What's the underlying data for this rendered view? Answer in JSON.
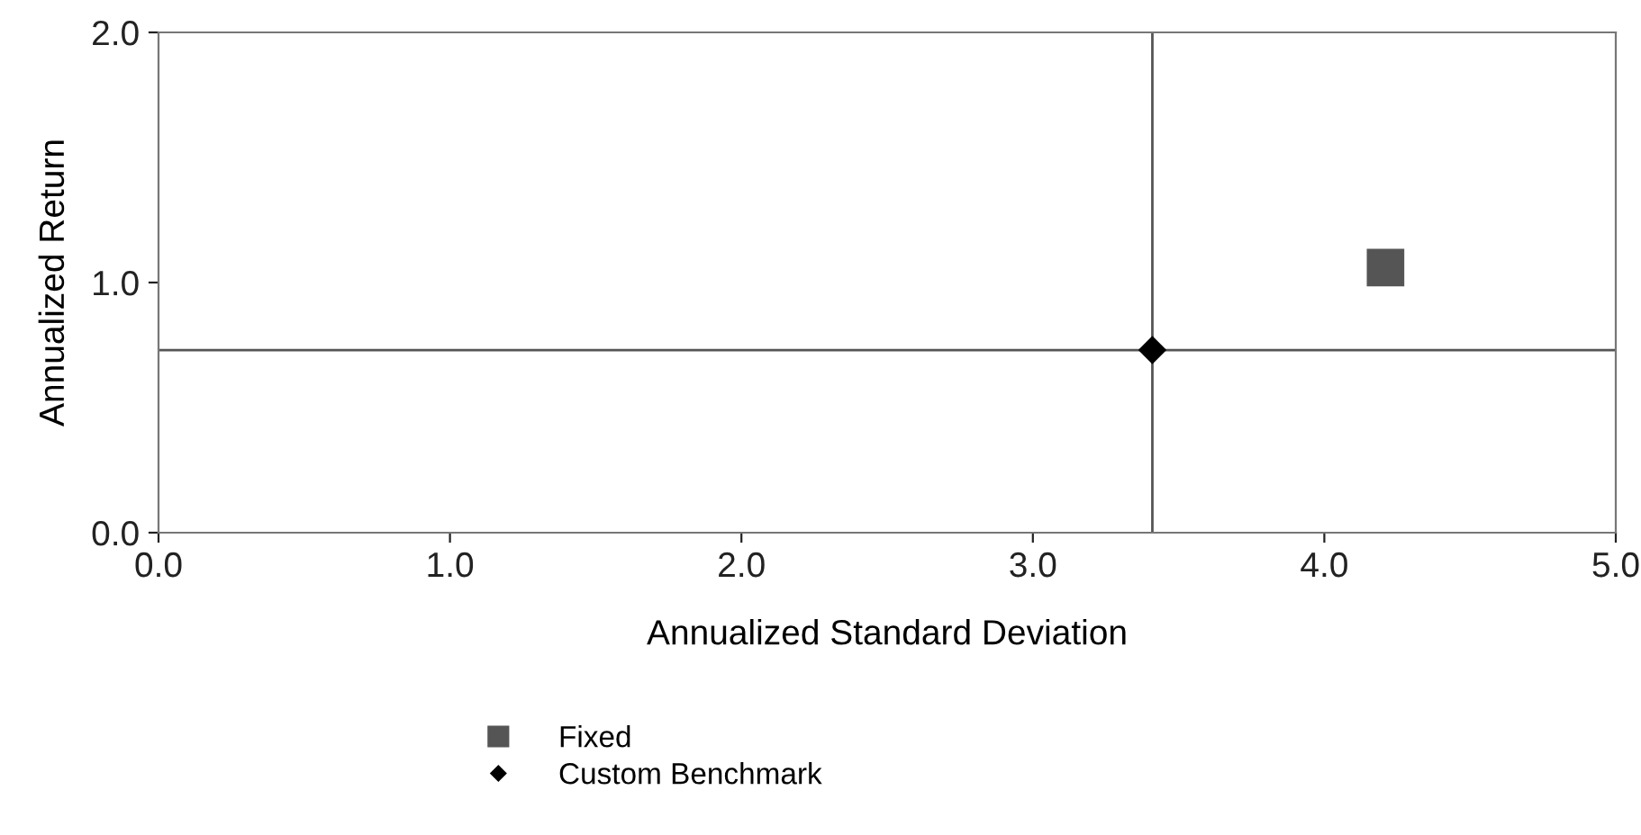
{
  "chart_data": {
    "type": "scatter",
    "xlabel": "Annualized Standard Deviation",
    "ylabel": "Annualized Return",
    "xlim": [
      0,
      5
    ],
    "ylim": [
      0,
      2
    ],
    "xticks": [
      {
        "value": 0,
        "label": "0.0"
      },
      {
        "value": 1,
        "label": "1.0"
      },
      {
        "value": 2,
        "label": "2.0"
      },
      {
        "value": 3,
        "label": "3.0"
      },
      {
        "value": 4,
        "label": "4.0"
      },
      {
        "value": 5,
        "label": "5.0"
      }
    ],
    "yticks": [
      {
        "value": 0,
        "label": "0.0"
      },
      {
        "value": 1,
        "label": "1.0"
      },
      {
        "value": 2,
        "label": "2.0"
      }
    ],
    "series": [
      {
        "name": "Fixed",
        "color": "#555555",
        "marker": "square",
        "x": [
          4.21
        ],
        "values": [
          1.06
        ]
      },
      {
        "name": "Custom Benchmark",
        "color": "#000000",
        "marker": "diamond",
        "x": [
          3.41
        ],
        "values": [
          0.73
        ]
      }
    ],
    "ref_lines": [
      {
        "axis": "x",
        "value": 3.41,
        "color": "#555555"
      },
      {
        "axis": "y",
        "value": 0.73,
        "color": "#555555"
      }
    ],
    "grid": false,
    "legend": "bottom"
  }
}
